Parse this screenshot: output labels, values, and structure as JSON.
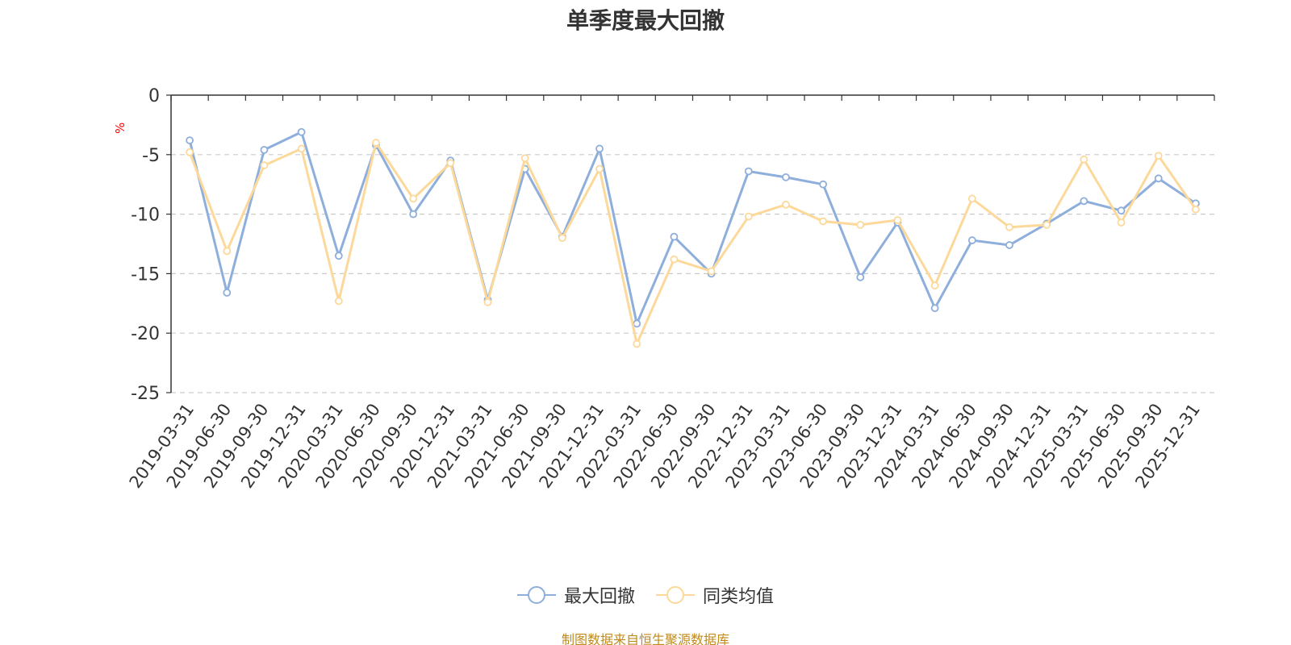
{
  "chart_data": {
    "type": "line",
    "title": "单季度最大回撤",
    "ylabel": "%",
    "xlabel": "",
    "ylim": [
      -25,
      0
    ],
    "yticks": [
      0,
      -5,
      -10,
      -15,
      -20,
      -25
    ],
    "grid": true,
    "legend_position": "bottom",
    "categories": [
      "2019-03-31",
      "2019-06-30",
      "2019-09-30",
      "2019-12-31",
      "2020-03-31",
      "2020-06-30",
      "2020-09-30",
      "2020-12-31",
      "2021-03-31",
      "2021-06-30",
      "2021-09-30",
      "2021-12-31",
      "2022-03-31",
      "2022-06-30",
      "2022-09-30",
      "2022-12-31",
      "2023-03-31",
      "2023-06-30",
      "2023-09-30",
      "2023-12-31",
      "2024-03-31",
      "2024-06-30",
      "2024-09-30",
      "2024-12-31",
      "2025-03-31",
      "2025-06-30",
      "2025-09-30",
      "2025-12-31"
    ],
    "series": [
      {
        "name": "最大回撤",
        "color": "#8eaedb",
        "values": [
          -3.8,
          -16.6,
          -4.6,
          -3.1,
          -13.5,
          -4.2,
          -10.0,
          -5.5,
          -17.2,
          -6.2,
          -11.9,
          -4.5,
          -19.2,
          -11.9,
          -15.0,
          -6.4,
          -6.9,
          -7.5,
          -15.3,
          -10.7,
          -17.9,
          -12.2,
          -12.6,
          -10.8,
          -8.9,
          -9.7,
          -7.0,
          -9.1
        ]
      },
      {
        "name": "同类均值",
        "color": "#fcd99a",
        "values": [
          -4.8,
          -13.1,
          -5.9,
          -4.5,
          -17.3,
          -4.0,
          -8.7,
          -5.7,
          -17.4,
          -5.3,
          -12.0,
          -6.2,
          -20.9,
          -13.8,
          -14.8,
          -10.2,
          -9.2,
          -10.6,
          -10.9,
          -10.5,
          -16.0,
          -8.7,
          -11.1,
          -10.9,
          -5.4,
          -10.7,
          -5.1,
          -9.6
        ]
      }
    ]
  },
  "footer": {
    "source": "制图数据来自恒生聚源数据库"
  }
}
